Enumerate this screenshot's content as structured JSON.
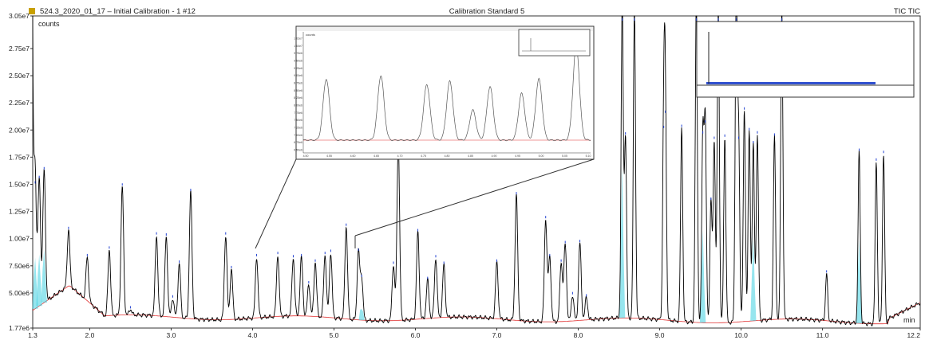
{
  "header": {
    "left_title": "524.3_2020_01_17 – Initial Calibration - 1 #12",
    "center_title": "Calibration Standard 5",
    "right_title": "TIC TIC"
  },
  "chart_data": {
    "type": "line",
    "title": "Calibration Standard 5",
    "ylabel": "counts",
    "xlabel": "min",
    "xlim": [
      1.3,
      12.2
    ],
    "ylim": [
      1770000.0,
      30500000.0
    ],
    "x_ticks": [
      {
        "v": 1.3,
        "label": "1.3"
      },
      {
        "v": 2.0,
        "label": "2.0"
      },
      {
        "v": 3.0,
        "label": "3.0"
      },
      {
        "v": 4.0,
        "label": "4.0"
      },
      {
        "v": 5.0,
        "label": "5.0"
      },
      {
        "v": 6.0,
        "label": "6.0"
      },
      {
        "v": 7.0,
        "label": "7.0"
      },
      {
        "v": 8.0,
        "label": "8.0"
      },
      {
        "v": 9.0,
        "label": "9.0"
      },
      {
        "v": 10.0,
        "label": "10.0"
      },
      {
        "v": 11.0,
        "label": "11.0"
      },
      {
        "v": 12.2,
        "label": "12.2"
      }
    ],
    "y_ticks": [
      {
        "v": 1770000.0,
        "label": "1.77e6"
      },
      {
        "v": 5000000.0,
        "label": "5.00e6"
      },
      {
        "v": 7500000.0,
        "label": "7.50e6"
      },
      {
        "v": 10000000.0,
        "label": "1.00e7"
      },
      {
        "v": 12500000.0,
        "label": "1.25e7"
      },
      {
        "v": 15000000.0,
        "label": "1.50e7"
      },
      {
        "v": 17500000.0,
        "label": "1.75e7"
      },
      {
        "v": 20000000.0,
        "label": "2.00e7"
      },
      {
        "v": 22500000.0,
        "label": "2.25e7"
      },
      {
        "v": 25000000.0,
        "label": "2.50e7"
      },
      {
        "v": 27500000.0,
        "label": "2.75e7"
      },
      {
        "v": 30500000.0,
        "label": "3.05e7"
      }
    ],
    "peaks": [
      {
        "rt": 1.33,
        "height": 15000000.0
      },
      {
        "rt": 1.38,
        "height": 15500000.0
      },
      {
        "rt": 1.44,
        "height": 16300000.0
      },
      {
        "rt": 1.74,
        "height": 10800000.0
      },
      {
        "rt": 1.97,
        "height": 8300000.0
      },
      {
        "rt": 2.24,
        "height": 9000000.0
      },
      {
        "rt": 2.4,
        "height": 14800000.0
      },
      {
        "rt": 2.5,
        "height": 3500000.0
      },
      {
        "rt": 2.82,
        "height": 10300000.0
      },
      {
        "rt": 2.94,
        "height": 10200000.0
      },
      {
        "rt": 3.02,
        "height": 4500000.0
      },
      {
        "rt": 3.1,
        "height": 7700000.0
      },
      {
        "rt": 3.24,
        "height": 14300000.0
      },
      {
        "rt": 3.67,
        "height": 10300000.0
      },
      {
        "rt": 3.74,
        "height": 7200000.0
      },
      {
        "rt": 4.05,
        "height": 8300000.0
      },
      {
        "rt": 4.31,
        "height": 8500000.0
      },
      {
        "rt": 4.5,
        "height": 8200000.0
      },
      {
        "rt": 4.6,
        "height": 8300000.0
      },
      {
        "rt": 4.69,
        "height": 5800000.0
      },
      {
        "rt": 4.77,
        "height": 7800000.0
      },
      {
        "rt": 4.89,
        "height": 8500000.0
      },
      {
        "rt": 4.96,
        "height": 8700000.0
      },
      {
        "rt": 5.15,
        "height": 11100000.0
      },
      {
        "rt": 5.3,
        "height": 8800000.0
      },
      {
        "rt": 5.34,
        "height": 6400000.0
      },
      {
        "rt": 5.73,
        "height": 7600000.0
      },
      {
        "rt": 5.79,
        "height": 18900000.0
      },
      {
        "rt": 6.03,
        "height": 10600000.0
      },
      {
        "rt": 6.15,
        "height": 6200000.0
      },
      {
        "rt": 6.25,
        "height": 8200000.0
      },
      {
        "rt": 6.35,
        "height": 7600000.0
      },
      {
        "rt": 7.0,
        "height": 7800000.0
      },
      {
        "rt": 7.24,
        "height": 14000000.0
      },
      {
        "rt": 7.6,
        "height": 11800000.0
      },
      {
        "rt": 7.65,
        "height": 8300000.0
      },
      {
        "rt": 7.79,
        "height": 7800000.0
      },
      {
        "rt": 7.84,
        "height": 9500000.0
      },
      {
        "rt": 7.93,
        "height": 4800000.0
      },
      {
        "rt": 8.02,
        "height": 9600000.0
      },
      {
        "rt": 8.1,
        "height": 4600000.0
      },
      {
        "rt": 8.54,
        "height": 32000000.0
      },
      {
        "rt": 8.58,
        "height": 19500000.0
      },
      {
        "rt": 8.69,
        "height": 32000000.0
      },
      {
        "rt": 9.05,
        "height": 20100000.0
      },
      {
        "rt": 9.07,
        "height": 21500000.0
      },
      {
        "rt": 9.27,
        "height": 20200000.0
      },
      {
        "rt": 9.45,
        "height": 32000000.0
      },
      {
        "rt": 9.53,
        "height": 19600000.0
      },
      {
        "rt": 9.56,
        "height": 20600000.0
      },
      {
        "rt": 9.63,
        "height": 13500000.0
      },
      {
        "rt": 9.67,
        "height": 19100000.0
      },
      {
        "rt": 9.72,
        "height": 32000000.0
      },
      {
        "rt": 9.8,
        "height": 19300000.0
      },
      {
        "rt": 9.94,
        "height": 32000000.0
      },
      {
        "rt": 9.97,
        "height": 19100000.0
      },
      {
        "rt": 10.04,
        "height": 21800000.0
      },
      {
        "rt": 10.1,
        "height": 19900000.0
      },
      {
        "rt": 10.15,
        "height": 18700000.0
      },
      {
        "rt": 10.2,
        "height": 19600000.0
      },
      {
        "rt": 10.41,
        "height": 19400000.0
      },
      {
        "rt": 10.5,
        "height": 32000000.0
      },
      {
        "rt": 11.05,
        "height": 6800000.0
      },
      {
        "rt": 11.45,
        "height": 18000000.0
      },
      {
        "rt": 11.66,
        "height": 17100000.0
      },
      {
        "rt": 11.75,
        "height": 17800000.0
      }
    ]
  },
  "inset_zoom": {
    "ylabel": "counts",
    "y_ticks": [
      "1.02e7",
      "1.00e7",
      "9.75e6",
      "9.50e6",
      "9.25e6",
      "9.00e6",
      "8.75e6",
      "8.50e6",
      "8.25e6",
      "8.00e6",
      "7.75e6",
      "7.50e6",
      "7.25e6",
      "7.00e6",
      "6.75e6",
      "6.50e6"
    ],
    "x_ticks": [
      "4.50",
      "4.55",
      "4.60",
      "4.65",
      "4.70",
      "4.75",
      "4.80",
      "4.85",
      "4.90",
      "4.95",
      "5.00",
      "5.05",
      "5.10"
    ],
    "peak_heights": [
      0.55,
      0.58,
      0.5,
      0.53,
      0.27,
      0.48,
      0.42,
      0.55,
      0.85
    ]
  },
  "inset_overview": {
    "note": "full-range overview of chromatogram"
  },
  "colors": {
    "trace": "#000000",
    "baseline": "#e03030",
    "fill": "#40d0e0",
    "marker": "#2040d0",
    "frame": "#222222",
    "header_bg": "#ffffff",
    "accent_highlight": "#c8c8c8"
  }
}
